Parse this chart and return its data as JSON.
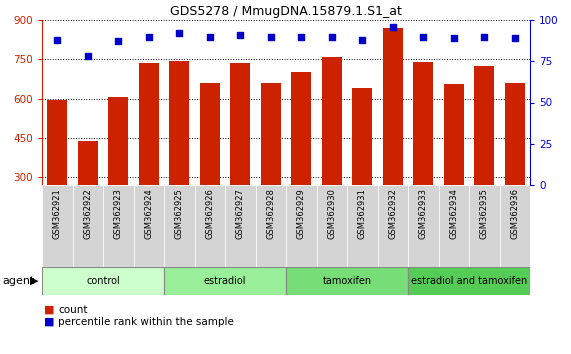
{
  "title": "GDS5278 / MmugDNA.15879.1.S1_at",
  "samples": [
    "GSM362921",
    "GSM362922",
    "GSM362923",
    "GSM362924",
    "GSM362925",
    "GSM362926",
    "GSM362927",
    "GSM362928",
    "GSM362929",
    "GSM362930",
    "GSM362931",
    "GSM362932",
    "GSM362933",
    "GSM362934",
    "GSM362935",
    "GSM362936"
  ],
  "counts": [
    595,
    437,
    605,
    735,
    745,
    660,
    735,
    660,
    700,
    760,
    640,
    870,
    740,
    655,
    725,
    660
  ],
  "percentiles": [
    88,
    78,
    87,
    90,
    92,
    90,
    91,
    90,
    90,
    90,
    88,
    96,
    90,
    89,
    90,
    89
  ],
  "bar_color": "#cc2200",
  "dot_color": "#0000cc",
  "ylim_left": [
    270,
    900
  ],
  "ylim_right": [
    0,
    100
  ],
  "yticks_left": [
    300,
    450,
    600,
    750,
    900
  ],
  "yticks_right": [
    0,
    25,
    50,
    75,
    100
  ],
  "groups": [
    {
      "label": "control",
      "start": 0,
      "end": 4,
      "color": "#ccffcc"
    },
    {
      "label": "estradiol",
      "start": 4,
      "end": 8,
      "color": "#99ee99"
    },
    {
      "label": "tamoxifen",
      "start": 8,
      "end": 12,
      "color": "#77dd77"
    },
    {
      "label": "estradiol and tamoxifen",
      "start": 12,
      "end": 16,
      "color": "#55cc55"
    }
  ],
  "agent_label": "agent",
  "legend_count_label": "count",
  "legend_pct_label": "percentile rank within the sample",
  "tick_area_color": "#d0d0d0",
  "cell_border_color": "#aaaaaa"
}
